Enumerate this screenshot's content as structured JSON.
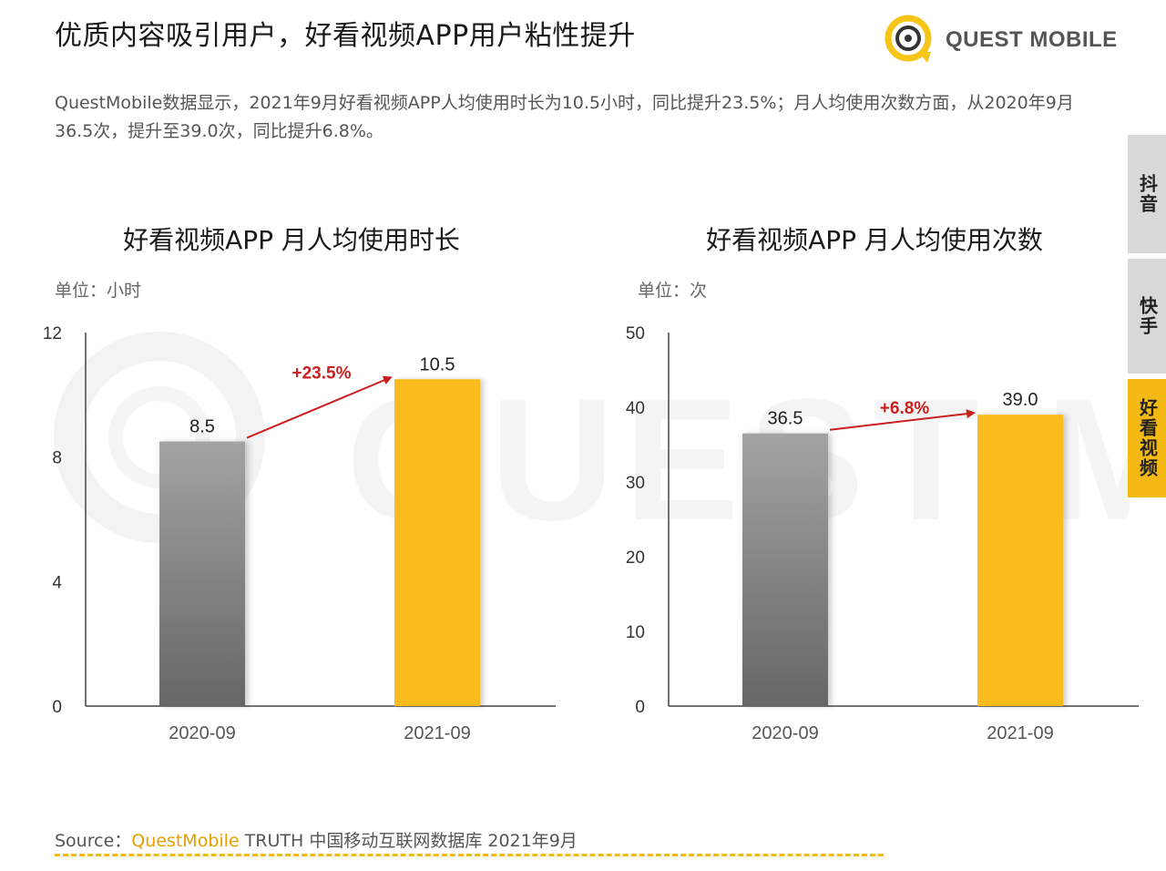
{
  "header": {
    "title": "优质内容吸引用户，好看视频APP用户粘性提升",
    "logo_text": "QUEST MOBILE"
  },
  "description": "QuestMobile数据显示，2021年9月好看视频APP人均使用时长为10.5小时，同比提升23.5%；月人均使用次数方面，从2020年9月36.5次，提升至39.0次，同比提升6.8%。",
  "side_tabs": [
    {
      "label": "抖音",
      "active": false
    },
    {
      "label": "快手",
      "active": false
    },
    {
      "label": "好看视频",
      "active": true
    }
  ],
  "colors": {
    "gray_top": "#a3a3a3",
    "gray_bottom": "#666666",
    "yellow": "#fbbb1a",
    "arrow": "#cc1f1f",
    "tab_active": "#f5b914"
  },
  "chart_data": [
    {
      "type": "bar",
      "title": "好看视频APP 月人均使用时长",
      "unit": "单位：小时",
      "categories": [
        "2020-09",
        "2021-09"
      ],
      "values": [
        8.5,
        10.5
      ],
      "value_labels": [
        "8.5",
        "10.5"
      ],
      "ylim": [
        0,
        12
      ],
      "yticks": [
        0,
        4,
        8,
        12
      ],
      "growth_label": "+23.5%",
      "xlabel": "",
      "ylabel": ""
    },
    {
      "type": "bar",
      "title": "好看视频APP 月人均使用次数",
      "unit": "单位：次",
      "categories": [
        "2020-09",
        "2021-09"
      ],
      "values": [
        36.5,
        39.0
      ],
      "value_labels": [
        "36.5",
        "39.0"
      ],
      "ylim": [
        0,
        50
      ],
      "yticks": [
        0,
        10,
        20,
        30,
        40,
        50
      ],
      "growth_label": "+6.8%",
      "xlabel": "",
      "ylabel": ""
    }
  ],
  "footer": {
    "prefix": "Source：",
    "brand": "QuestMobile",
    "suffix": " TRUTH 中国移动互联网数据库 2021年9月"
  }
}
